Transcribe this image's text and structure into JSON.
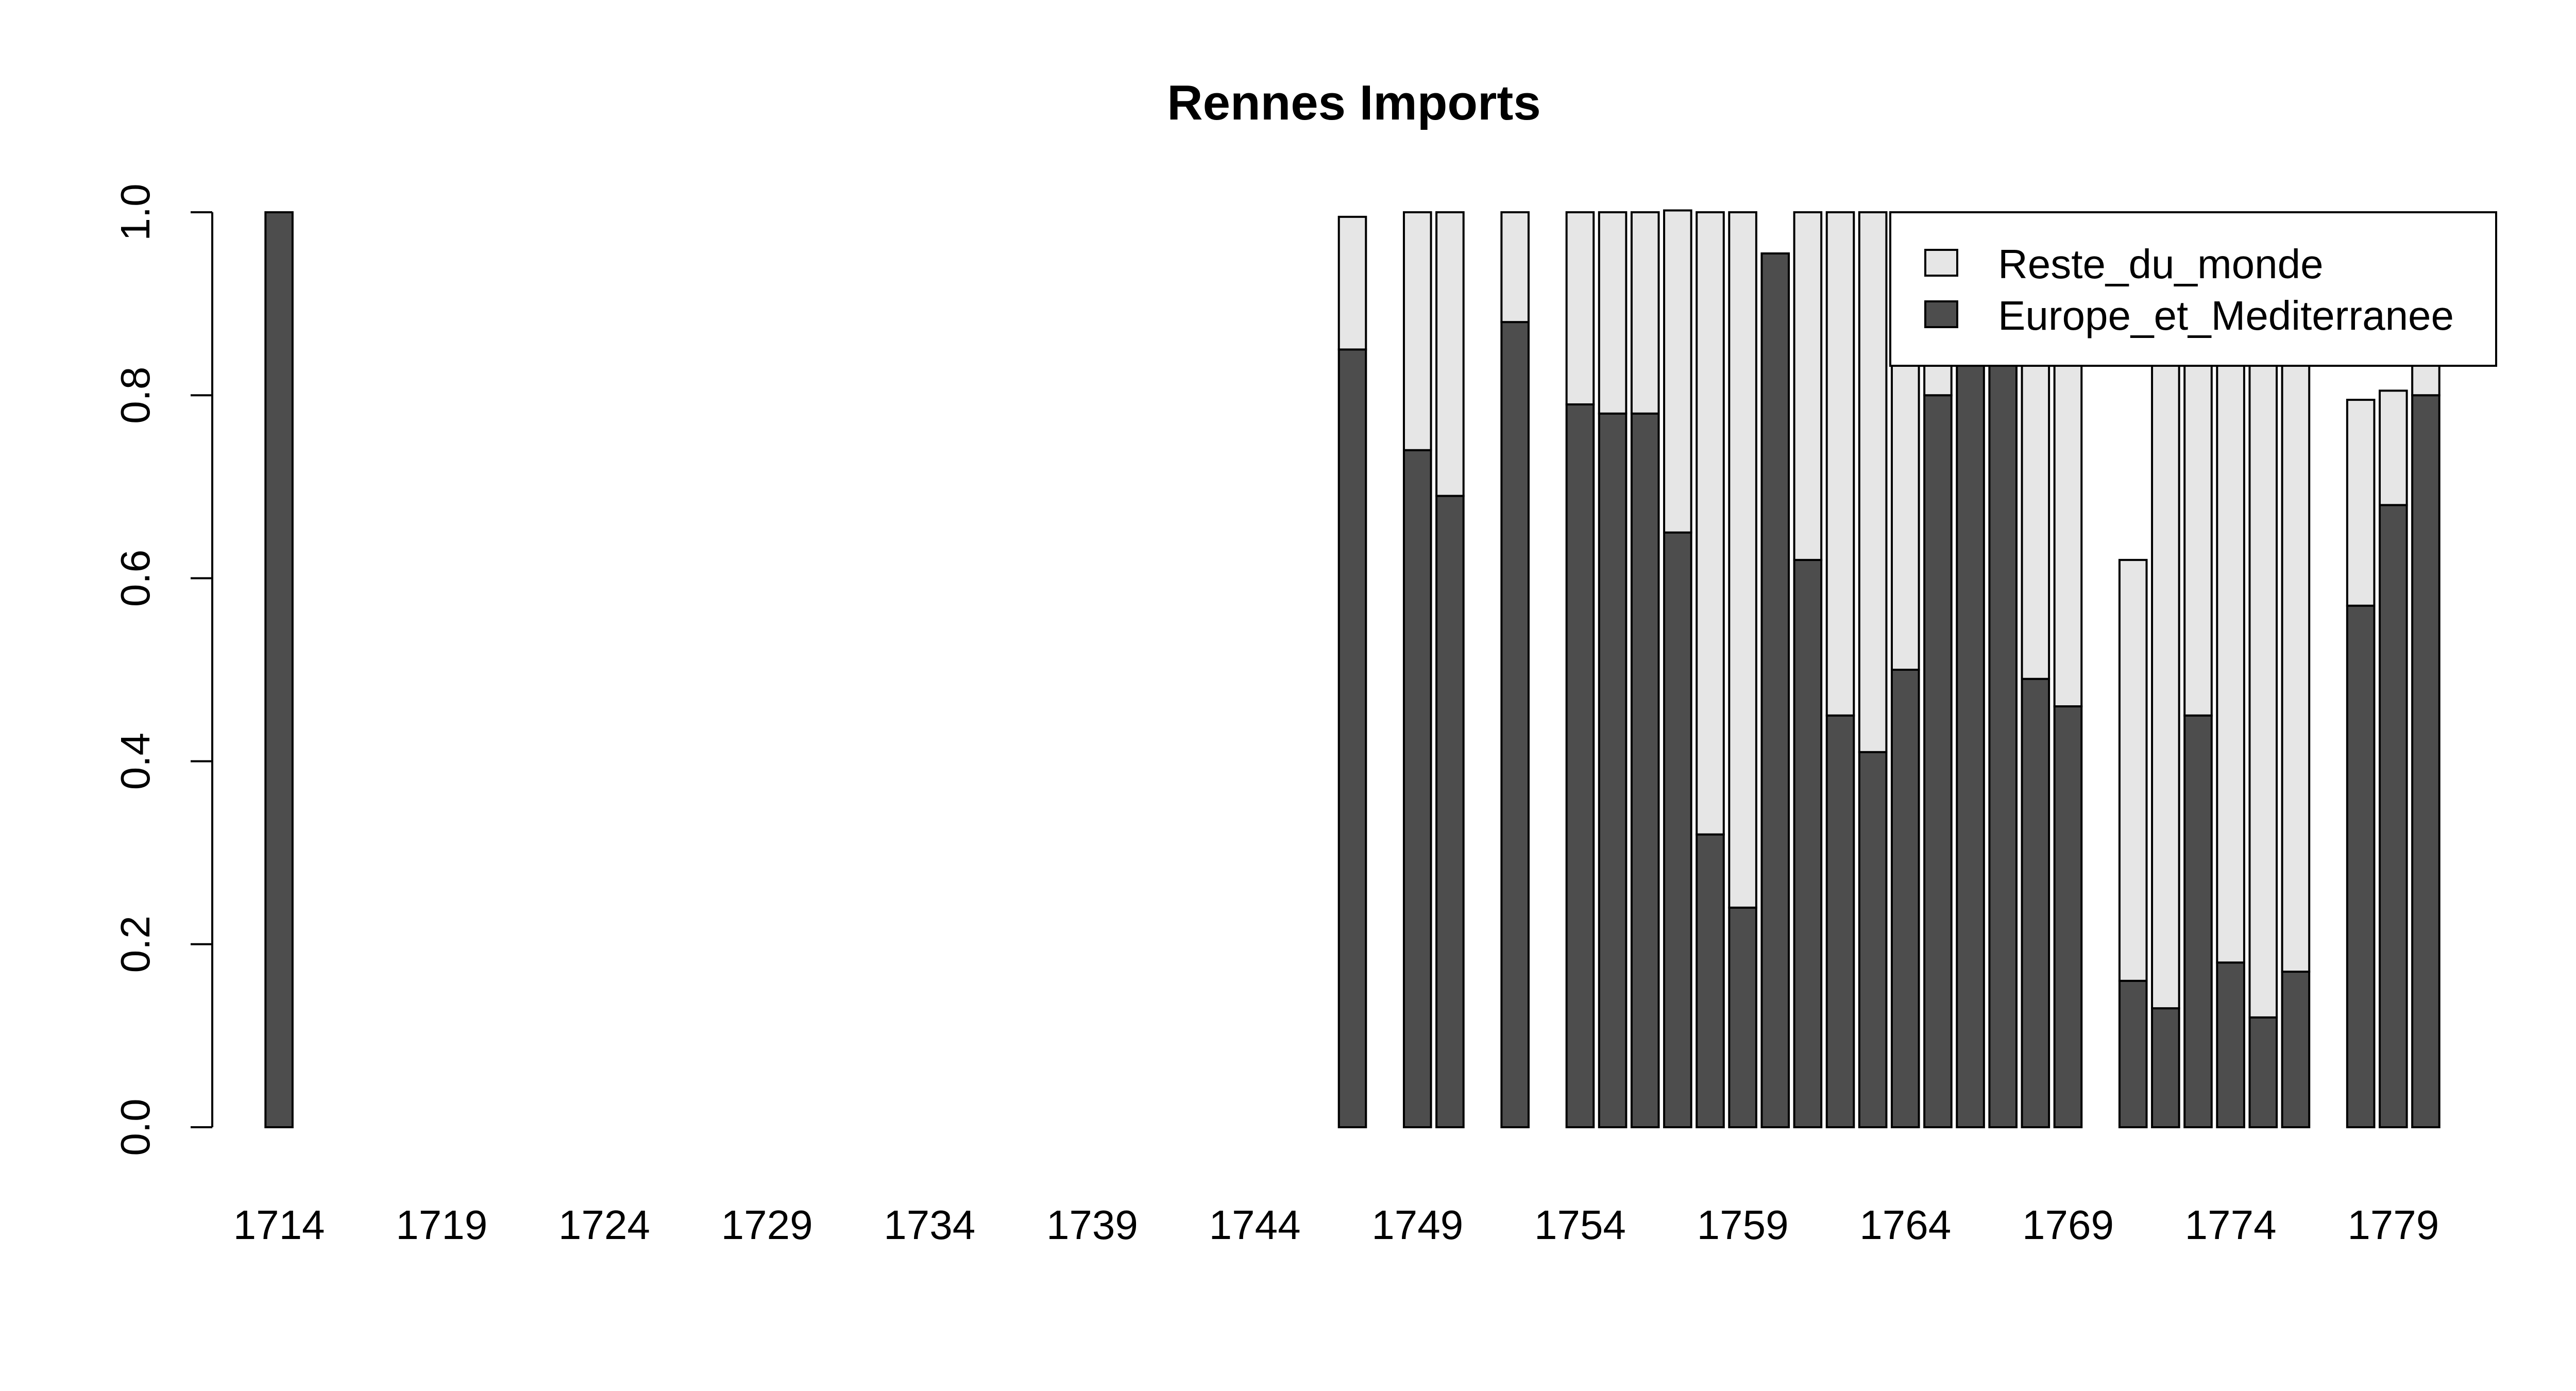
{
  "chart_data": {
    "type": "bar",
    "stacked": true,
    "title": "Rennes Imports",
    "xlabel": "",
    "ylabel": "",
    "ylim": [
      0,
      1
    ],
    "y_ticks": [
      "0.0",
      "0.2",
      "0.4",
      "0.6",
      "0.8",
      "1.0"
    ],
    "x_tick_labels": [
      "1714",
      "1719",
      "1724",
      "1729",
      "1734",
      "1739",
      "1744",
      "1749",
      "1754",
      "1759",
      "1764",
      "1769",
      "1774",
      "1779"
    ],
    "legend": {
      "position": "top-right",
      "entries": [
        "Reste_du_monde",
        "Europe_et_Mediterranee"
      ]
    },
    "colors": {
      "Reste_du_monde": "#e6e6e6",
      "Europe_et_Mediterranee": "#4d4d4d",
      "border": "#000000"
    },
    "years": [
      1714,
      1715,
      1716,
      1717,
      1718,
      1719,
      1720,
      1721,
      1722,
      1723,
      1724,
      1725,
      1726,
      1727,
      1728,
      1729,
      1730,
      1731,
      1732,
      1733,
      1734,
      1735,
      1736,
      1737,
      1738,
      1739,
      1740,
      1741,
      1742,
      1743,
      1744,
      1745,
      1746,
      1747,
      1748,
      1749,
      1750,
      1751,
      1752,
      1753,
      1754,
      1755,
      1756,
      1757,
      1758,
      1759,
      1760,
      1761,
      1762,
      1763,
      1764,
      1765,
      1766,
      1767,
      1768,
      1769,
      1770,
      1771,
      1772,
      1773,
      1774,
      1775,
      1776,
      1777,
      1778,
      1779,
      1780
    ],
    "series": [
      {
        "name": "Europe_et_Mediterranee",
        "values": [
          1.0,
          null,
          null,
          null,
          null,
          null,
          null,
          null,
          null,
          null,
          null,
          null,
          null,
          null,
          null,
          null,
          null,
          null,
          null,
          null,
          null,
          null,
          null,
          null,
          null,
          null,
          null,
          null,
          null,
          null,
          null,
          null,
          null,
          0.85,
          null,
          0.74,
          0.69,
          null,
          0.88,
          null,
          0.79,
          0.78,
          0.78,
          0.65,
          0.32,
          0.24,
          0.955,
          0.62,
          0.45,
          0.41,
          0.5,
          0.8,
          0.9,
          0.9,
          0.49,
          0.46,
          null,
          0.16,
          0.13,
          0.45,
          0.18,
          0.12,
          0.17,
          null,
          0.57,
          0.68,
          0.8
        ]
      },
      {
        "name": "Reste_du_monde",
        "values": [
          0.0,
          null,
          null,
          null,
          null,
          null,
          null,
          null,
          null,
          null,
          null,
          null,
          null,
          null,
          null,
          null,
          null,
          null,
          null,
          null,
          null,
          null,
          null,
          null,
          null,
          null,
          null,
          null,
          null,
          null,
          null,
          null,
          null,
          0.145,
          null,
          0.26,
          0.31,
          null,
          0.12,
          null,
          0.21,
          0.22,
          0.22,
          0.352,
          0.68,
          0.76,
          0.0,
          0.38,
          0.55,
          0.59,
          0.5,
          0.2,
          0.1,
          0.1,
          0.51,
          0.54,
          null,
          0.46,
          0.87,
          0.55,
          0.82,
          0.88,
          0.83,
          null,
          0.225,
          0.125,
          0.2
        ]
      }
    ]
  }
}
